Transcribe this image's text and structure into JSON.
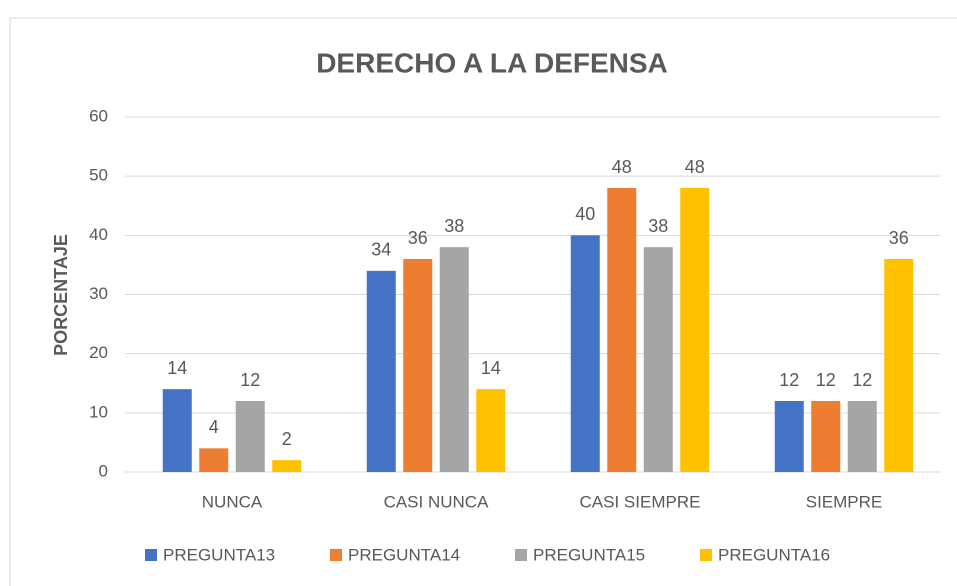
{
  "chart_data": {
    "type": "bar",
    "title": "DERECHO A LA DEFENSA",
    "y_label": "PORCENTAJE",
    "categories": [
      "NUNCA",
      "CASI NUNCA",
      "CASI SIEMPRE",
      "SIEMPRE"
    ],
    "series": [
      {
        "name": "PREGUNTA13",
        "color": "#4472c4",
        "values": [
          14,
          34,
          40,
          12
        ]
      },
      {
        "name": "PREGUNTA14",
        "color": "#ed7d31",
        "values": [
          4,
          36,
          48,
          12
        ]
      },
      {
        "name": "PREGUNTA15",
        "color": "#a5a5a5",
        "values": [
          12,
          38,
          38,
          12
        ]
      },
      {
        "name": "PREGUNTA16",
        "color": "#ffc000",
        "values": [
          2,
          14,
          48,
          36
        ]
      }
    ],
    "ylim": [
      0,
      60
    ],
    "yticks": [
      0,
      10,
      20,
      30,
      40,
      50,
      60
    ],
    "grid": true,
    "legend": "bottom"
  }
}
